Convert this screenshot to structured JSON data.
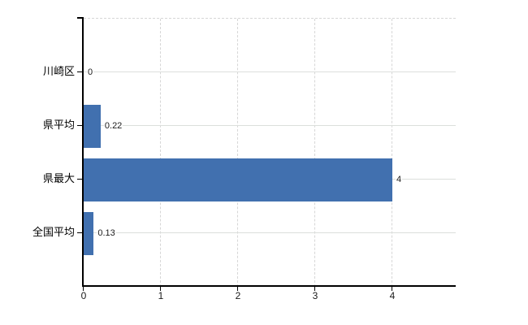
{
  "chart_data": {
    "type": "bar",
    "orientation": "horizontal",
    "title": "",
    "categories": [
      "川崎区",
      "県平均",
      "県最大",
      "全国平均"
    ],
    "values": [
      0,
      0.22,
      4,
      0.13
    ],
    "value_labels": [
      "0",
      "0.22",
      "4",
      "0.13"
    ],
    "x_tick_labels": [
      "0",
      "1",
      "2",
      "3",
      "4"
    ],
    "x_tick_values": [
      0,
      1,
      2,
      3,
      4
    ],
    "xlim": [
      0,
      4.82
    ],
    "legend": "none",
    "grid": {
      "vertical_gridlines": "dashed",
      "horizontal_row_lines": "solid",
      "plot_top_border": "dashed"
    },
    "colors": {
      "bar": "#4170af",
      "axis": "#000000",
      "grid_solid": "#dcdfdc",
      "grid_dashed": "#d6d6d6",
      "text": "#1a1a1a"
    }
  }
}
